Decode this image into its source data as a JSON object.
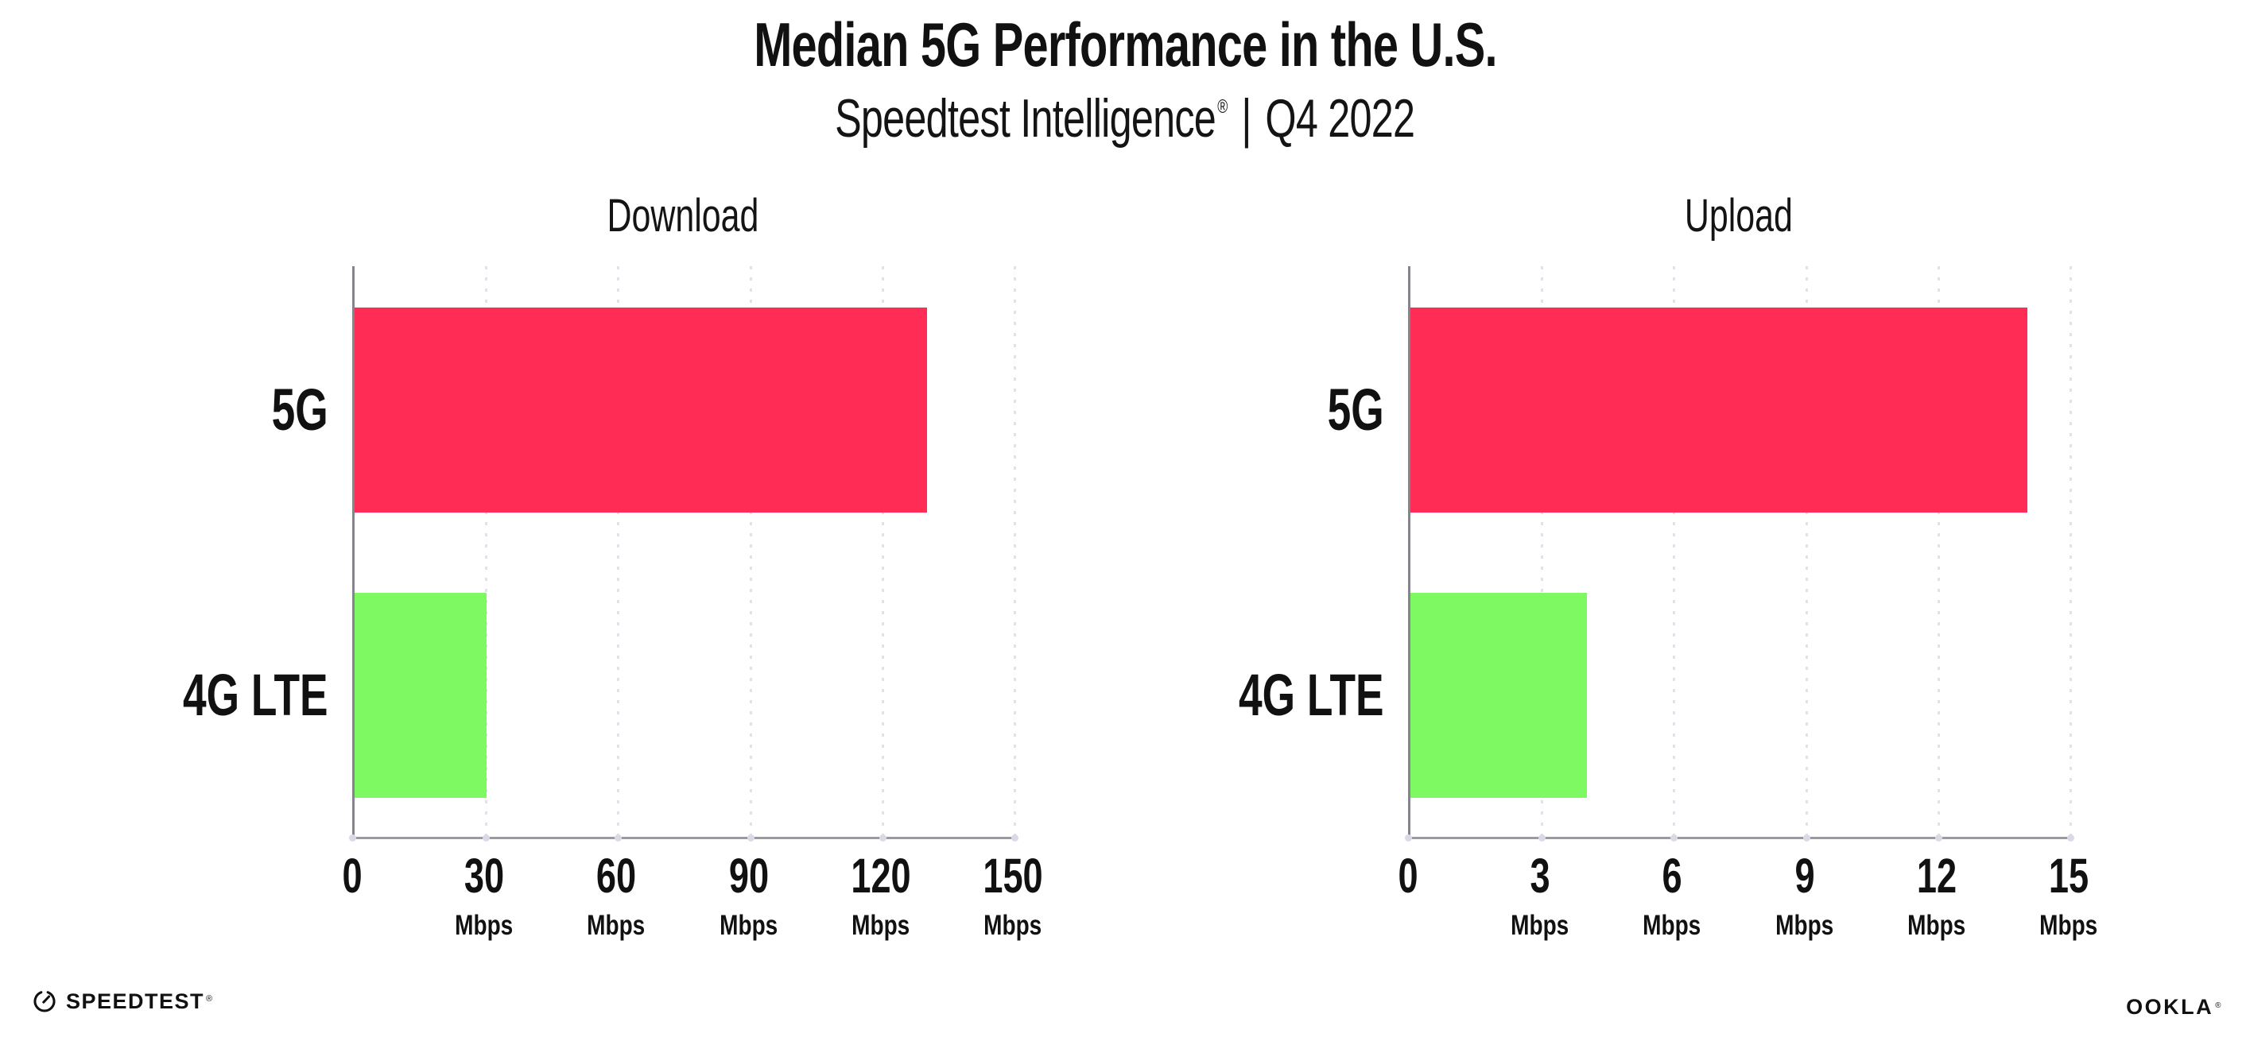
{
  "header": {
    "title": "Median 5G Performance in the U.S.",
    "subtitle_brand": "Speedtest Intelligence",
    "registered_mark": "®",
    "subtitle_separator": "|",
    "subtitle_period": "Q4 2022"
  },
  "chart_data": [
    {
      "type": "bar",
      "orientation": "horizontal",
      "title": "Download",
      "categories": [
        "5G",
        "4G LTE"
      ],
      "values": [
        130,
        30
      ],
      "unit": "Mbps",
      "xlim": [
        0,
        150
      ],
      "xticks": [
        0,
        30,
        60,
        90,
        120,
        150
      ],
      "xtick_labels": [
        "0",
        "30",
        "60",
        "90",
        "120",
        "150"
      ],
      "bar_colors": [
        "#FF2D56",
        "#7FF961"
      ],
      "grid": "vertical-dotted",
      "legend": "none"
    },
    {
      "type": "bar",
      "orientation": "horizontal",
      "title": "Upload",
      "categories": [
        "5G",
        "4G LTE"
      ],
      "values": [
        14,
        4
      ],
      "unit": "Mbps",
      "xlim": [
        0,
        15
      ],
      "xticks": [
        0,
        3,
        6,
        9,
        12,
        15
      ],
      "xtick_labels": [
        "0",
        "3",
        "6",
        "9",
        "12",
        "15"
      ],
      "bar_colors": [
        "#FF2D56",
        "#7FF961"
      ],
      "grid": "vertical-dotted",
      "legend": "none"
    }
  ],
  "footer": {
    "speedtest_wordmark": "SPEEDTEST",
    "speedtest_mark": "®",
    "ookla_wordmark": "OOKLA",
    "ookla_mark": "®"
  },
  "colors": {
    "bar_5g": "#FF2D56",
    "bar_4g_lte": "#7FF961",
    "axis": "#8F8F98",
    "gridline": "#E1E1EC",
    "text": "#111111",
    "background": "#FFFFFF"
  }
}
